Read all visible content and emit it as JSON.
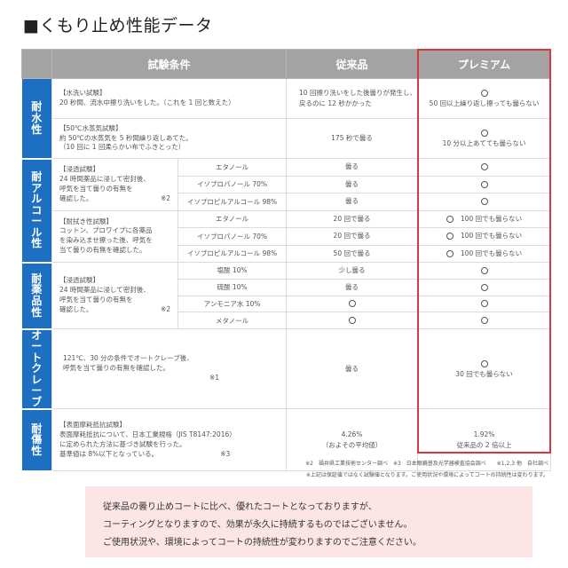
{
  "title": "■くもり止め性能データ",
  "header": {
    "conditions": "試験条件",
    "conventional": "従来品",
    "premium": "プレミアム"
  },
  "colors": {
    "category_bg": "#1c6fc1",
    "header_bg": "#a3a3a3",
    "premium_border": "#d9363e",
    "notice_bg": "#fce5e5"
  },
  "categories": {
    "water": "耐水性",
    "alcohol": "耐アルコール性",
    "chemical": "耐薬品性",
    "autoclave": "オートクレーブ",
    "scratch": "耐傷性"
  },
  "rows": {
    "water1": {
      "desc": [
        "【水洗い試験】",
        "20 秒間、流水中擦り洗いをした。（これを 1 回と数えた）"
      ],
      "conv": [
        "10 回擦り洗いをした後曇りが発生し、",
        "戻るのに 12 秒かかった"
      ],
      "prem": "50 回以上繰り返し擦っても曇らない"
    },
    "water2": {
      "desc": [
        "【50℃水蒸気試験】",
        "約 50℃の水蒸気を 5 秒間繰り返しあてた。",
        "（10 回に 1 回柔らかい布でふきとった）"
      ],
      "conv": "175 秒で曇る",
      "prem": "10 分以上あてても曇らない"
    },
    "alc_immersion": {
      "desc": [
        "【浸透試験】",
        "24 時間薬品に浸して密封後、",
        "呼気を当て曇りの有無を",
        "確認した。"
      ],
      "note": "※2",
      "subs": [
        "エタノール",
        "イソプロパノール 70%",
        "イソプロピルアルコール 98%"
      ],
      "conv": [
        "曇る",
        "曇る",
        "曇る"
      ]
    },
    "alc_wipe": {
      "desc": [
        "【耐拭き性試験】",
        "コットン、プロワイプに各薬品",
        "を染み込ませ擦った後、呼気を",
        "当て曇りの有無を確認した。"
      ],
      "subs": [
        "エタノール",
        "イソプロパノール 70%",
        "イソプロピルアルコール 98%"
      ],
      "conv": [
        "20 回で曇る",
        "20 回で曇る",
        "50 回で曇る"
      ],
      "prem": [
        "100 回でも曇らない",
        "100 回でも曇らない",
        "100 回でも曇らない"
      ]
    },
    "chemical": {
      "desc": [
        "【浸透試験】",
        "24 時間薬品に浸して密封後、",
        "呼気を当て曇りの有無を",
        "確認した。"
      ],
      "note": "※2",
      "subs": [
        "塩酸 10%",
        "硫酸 10%",
        "アンモニア水 10%",
        "メタノール"
      ],
      "conv": [
        "少し曇る",
        "曇る",
        "○",
        "○"
      ]
    },
    "autoclave": {
      "desc": [
        "121℃、30 分の条件でオートクレーブ後、",
        "呼気を当て曇りの有無を確認した。"
      ],
      "note": "※1",
      "conv": "曇る",
      "prem": "30 回でも曇らない"
    },
    "scratch": {
      "desc": [
        "【表面摩耗抵抗試験】",
        "表面摩耗抵抗について、日本工業規格（JIS T8147:2016）",
        "に定められた方法に基づき試験を行った。",
        "基準値は 8%以下となっている。"
      ],
      "note": "※3",
      "conv": [
        "4.26%",
        "（およその平均値）"
      ],
      "prem": [
        "1.92%",
        "従来品の 2 倍以上"
      ]
    }
  },
  "circle_icon": "circle-mark",
  "footnotes": [
    "※2　福井県工業技術センター調べ　※3　日本眼鏡普及光学器検査協会調べ　　※1,2,3 他　自社調べ",
    "※上記は保証値ではなく試験値となります。ご使用状況や環境によってコートの持続性は変わります。"
  ],
  "notice": [
    "従来品の曇り止めコートに比べ、優れたコートとなっておりますが、",
    "コーティングとなりますので、効果が永久に持続するものではございません。",
    "ご使用状況や、環境によってコートの持続性が変わりますのでご注意ください。"
  ]
}
